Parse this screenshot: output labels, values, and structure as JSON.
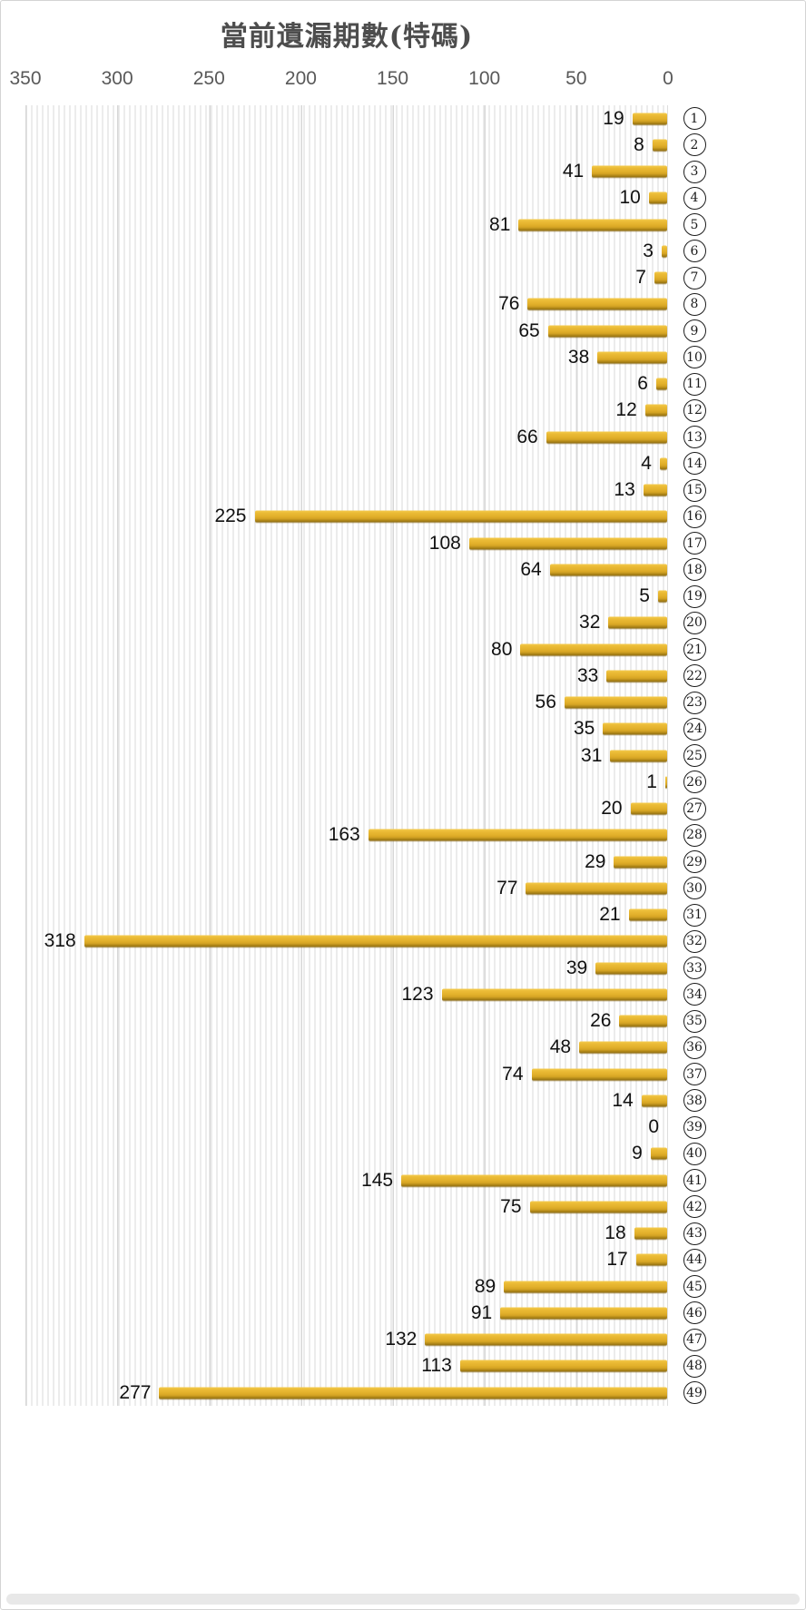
{
  "page": {
    "title": "當前遺漏期數(特碼)"
  },
  "chart_data": {
    "type": "bar",
    "orientation": "horizontal",
    "title": "當前遺漏期數(特碼)",
    "x_axis": {
      "position": "top",
      "reversed": true,
      "min": 0,
      "max": 350,
      "ticks": [
        350,
        300,
        250,
        200,
        150,
        100,
        50,
        0
      ]
    },
    "categories": [
      "1",
      "2",
      "3",
      "4",
      "5",
      "6",
      "7",
      "8",
      "9",
      "10",
      "11",
      "12",
      "13",
      "14",
      "15",
      "16",
      "17",
      "18",
      "19",
      "20",
      "21",
      "22",
      "23",
      "24",
      "25",
      "26",
      "27",
      "28",
      "29",
      "30",
      "31",
      "32",
      "33",
      "34",
      "35",
      "36",
      "37",
      "38",
      "39",
      "40",
      "41",
      "42",
      "43",
      "44",
      "45",
      "46",
      "47",
      "48",
      "49"
    ],
    "category_style": "circled-number",
    "values": [
      19,
      8,
      41,
      10,
      81,
      3,
      7,
      76,
      65,
      38,
      6,
      12,
      66,
      4,
      13,
      225,
      108,
      64,
      5,
      32,
      80,
      33,
      56,
      35,
      31,
      1,
      20,
      163,
      29,
      77,
      21,
      318,
      39,
      123,
      26,
      48,
      74,
      14,
      0,
      9,
      145,
      75,
      18,
      17,
      89,
      91,
      132,
      113,
      277
    ],
    "data_labels": "outside-end",
    "grid": true,
    "colors": {
      "bar": "#E2B02A",
      "bar_highlight": "#F4CB4E",
      "bar_shadow": "#8A6A14",
      "major_gridline": "#D7D7D7",
      "minor_stripe": "#ECECEC",
      "title_text": "#4D4D4D",
      "axis_text": "#595959",
      "value_text": "#111111"
    }
  }
}
